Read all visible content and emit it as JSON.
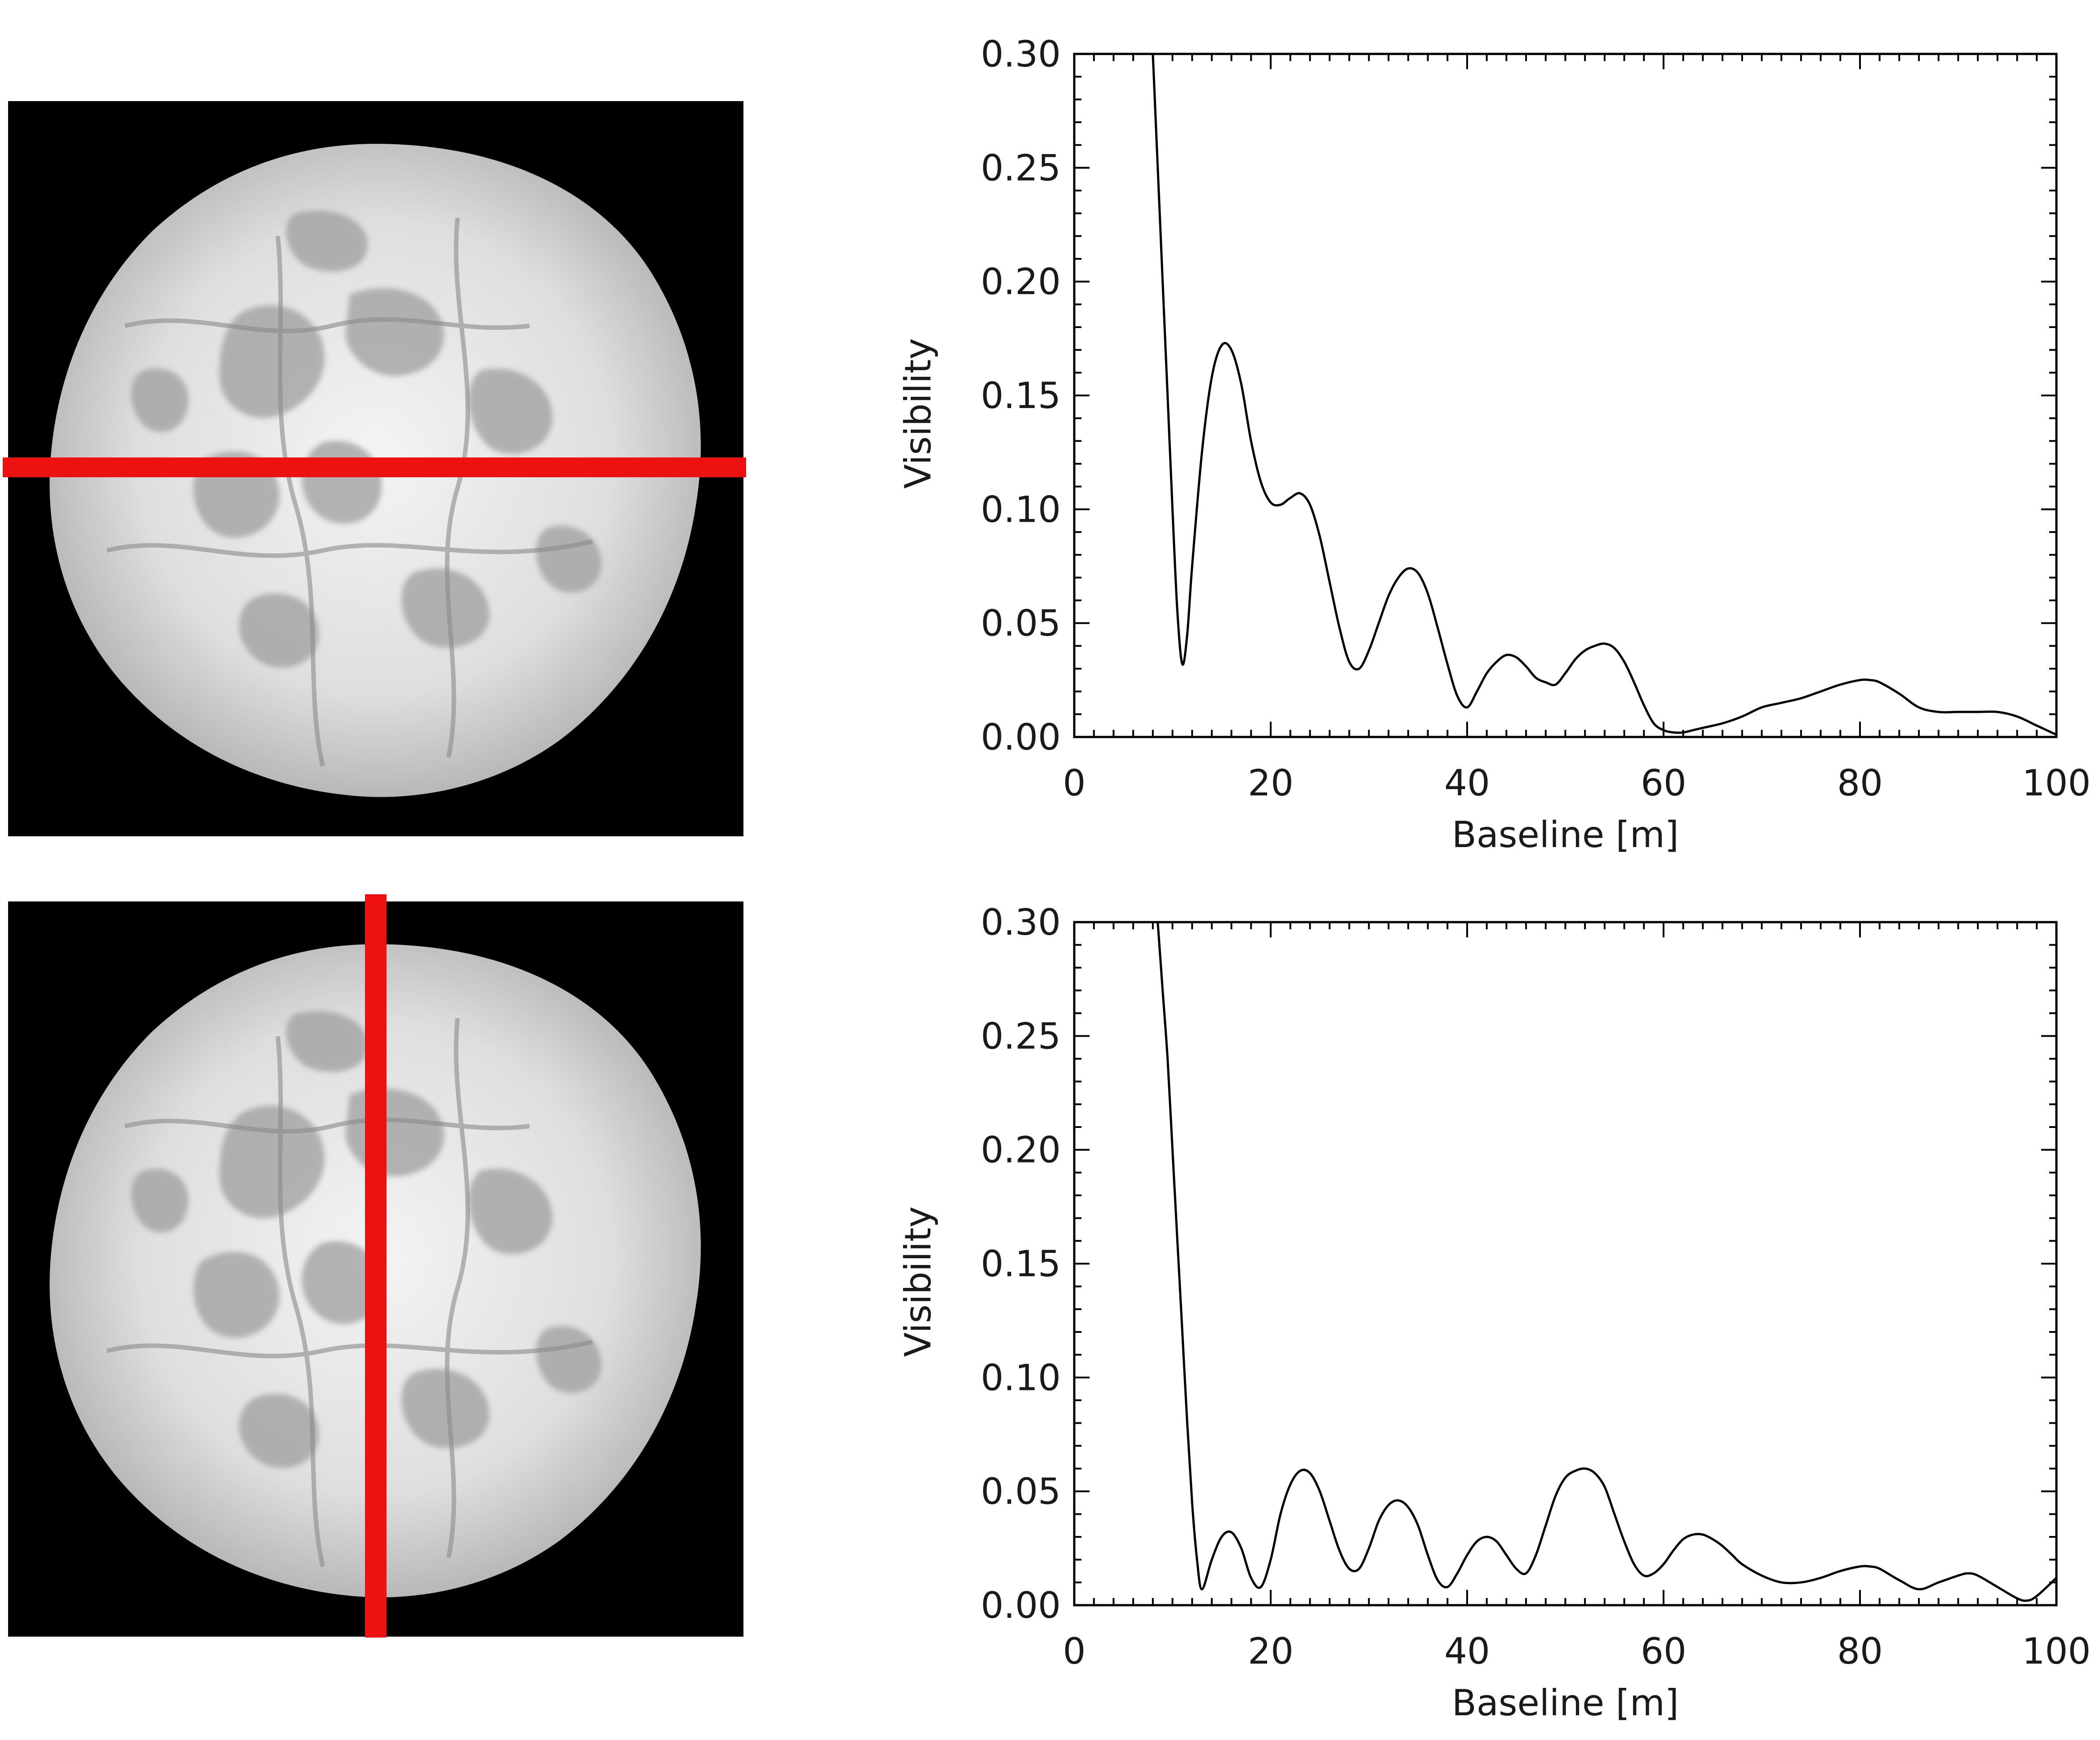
{
  "colors": {
    "cut_line": "#ee1111",
    "curve": "#000000",
    "background": "#ffffff",
    "image_bg": "#000000"
  },
  "panels": [
    {
      "cut_orientation": "horizontal",
      "chart_data": {
        "type": "line",
        "xlabel": "Baseline [m]",
        "ylabel": "Visibility",
        "xlim": [
          0,
          100
        ],
        "ylim": [
          0,
          0.3
        ],
        "xticks": [
          "0",
          "20",
          "40",
          "60",
          "80",
          "100"
        ],
        "yticks": [
          "0.00",
          "0.05",
          "0.10",
          "0.15",
          "0.20",
          "0.25",
          "0.30"
        ],
        "grid": false,
        "series": [
          {
            "x": [
              8,
              8.5,
              9,
              9.5,
              10,
              10.5,
              11,
              11.5,
              12,
              13,
              14,
              15,
              16,
              17,
              18,
              19,
              20,
              21,
              22,
              23,
              24,
              25,
              26,
              27,
              28,
              29,
              30,
              31,
              32,
              33,
              34,
              35,
              36,
              37,
              38,
              39,
              40,
              41,
              42,
              43,
              44,
              45,
              46,
              47,
              48,
              49,
              50,
              51,
              52,
              53,
              54,
              55,
              56,
              57,
              58,
              59,
              60,
              61,
              62,
              63,
              64,
              66,
              68,
              70,
              72,
              74,
              76,
              78,
              80,
              81,
              82,
              84,
              86,
              88,
              90,
              92,
              94,
              96,
              98,
              100
            ],
            "y": [
              0.3,
              0.25,
              0.2,
              0.15,
              0.1,
              0.055,
              0.032,
              0.045,
              0.075,
              0.125,
              0.158,
              0.172,
              0.17,
              0.155,
              0.13,
              0.112,
              0.103,
              0.102,
              0.105,
              0.107,
              0.102,
              0.088,
              0.068,
              0.048,
              0.033,
              0.03,
              0.038,
              0.05,
              0.062,
              0.07,
              0.074,
              0.072,
              0.063,
              0.048,
              0.032,
              0.018,
              0.013,
              0.02,
              0.028,
              0.033,
              0.036,
              0.035,
              0.031,
              0.026,
              0.024,
              0.023,
              0.028,
              0.034,
              0.038,
              0.04,
              0.041,
              0.039,
              0.033,
              0.024,
              0.014,
              0.006,
              0.003,
              0.002,
              0.002,
              0.003,
              0.004,
              0.006,
              0.009,
              0.013,
              0.015,
              0.017,
              0.02,
              0.023,
              0.025,
              0.025,
              0.024,
              0.019,
              0.013,
              0.011,
              0.011,
              0.011,
              0.011,
              0.009,
              0.005,
              0.001
            ]
          }
        ]
      }
    },
    {
      "cut_orientation": "vertical",
      "chart_data": {
        "type": "line",
        "xlabel": "Baseline [m]",
        "ylabel": "Visibility",
        "xlim": [
          0,
          100
        ],
        "ylim": [
          0,
          0.3
        ],
        "xticks": [
          "0",
          "20",
          "40",
          "60",
          "80",
          "100"
        ],
        "yticks": [
          "0.00",
          "0.05",
          "0.10",
          "0.15",
          "0.20",
          "0.25",
          "0.30"
        ],
        "grid": false,
        "series": [
          {
            "x": [
              8.5,
              9,
              9.5,
              10,
              10.5,
              11,
              11.5,
              12,
              12.5,
              13,
              14,
              15,
              16,
              17,
              18,
              19,
              20,
              21,
              22,
              23,
              24,
              25,
              26,
              27,
              28,
              29,
              30,
              31,
              32,
              33,
              34,
              35,
              36,
              37,
              38,
              39,
              40,
              41,
              42,
              43,
              44,
              45,
              46,
              47,
              48,
              49,
              50,
              51,
              52,
              53,
              54,
              55,
              56,
              57,
              58,
              59,
              60,
              61,
              62,
              63,
              64,
              65,
              66,
              67,
              68,
              70,
              72,
              74,
              76,
              78,
              80,
              81,
              82,
              84,
              86,
              88,
              90,
              91,
              92,
              94,
              96,
              97,
              98,
              100
            ],
            "y": [
              0.3,
              0.27,
              0.24,
              0.2,
              0.16,
              0.12,
              0.08,
              0.045,
              0.02,
              0.007,
              0.02,
              0.03,
              0.032,
              0.025,
              0.012,
              0.008,
              0.02,
              0.04,
              0.053,
              0.059,
              0.058,
              0.05,
              0.037,
              0.024,
              0.016,
              0.016,
              0.025,
              0.037,
              0.044,
              0.046,
              0.043,
              0.035,
              0.022,
              0.011,
              0.008,
              0.014,
              0.022,
              0.028,
              0.03,
              0.028,
              0.022,
              0.016,
              0.014,
              0.022,
              0.035,
              0.048,
              0.056,
              0.059,
              0.06,
              0.058,
              0.052,
              0.04,
              0.028,
              0.018,
              0.013,
              0.014,
              0.018,
              0.024,
              0.029,
              0.031,
              0.031,
              0.029,
              0.026,
              0.022,
              0.018,
              0.013,
              0.01,
              0.01,
              0.012,
              0.015,
              0.017,
              0.017,
              0.016,
              0.011,
              0.007,
              0.01,
              0.013,
              0.014,
              0.013,
              0.008,
              0.003,
              0.002,
              0.004,
              0.012
            ]
          }
        ]
      }
    }
  ]
}
